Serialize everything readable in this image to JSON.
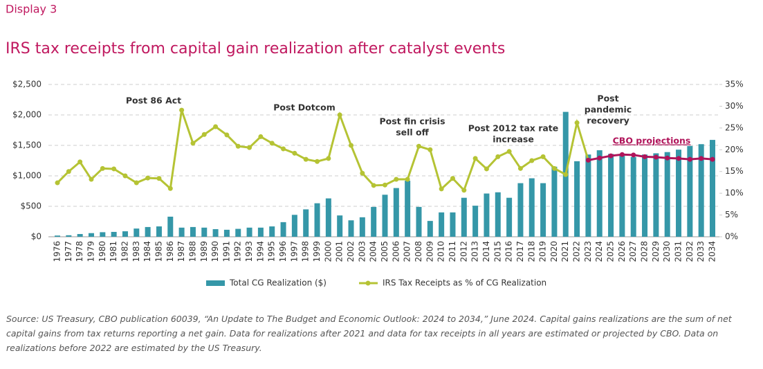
{
  "header": "Display 3",
  "chart_data": {
    "type": "bar-line",
    "title": "IRS tax receipts from capital gain realization after catalyst events",
    "categories": [
      "1976",
      "1977",
      "1978",
      "1979",
      "1980",
      "1981",
      "1982",
      "1983",
      "1984",
      "1985",
      "1986",
      "1987",
      "1988",
      "1989",
      "1990",
      "1991",
      "1992",
      "1993",
      "1994",
      "1995",
      "1996",
      "1997",
      "1998",
      "1999",
      "2000",
      "2001",
      "2002",
      "2003",
      "2004",
      "2005",
      "2006",
      "2007",
      "2008",
      "2009",
      "2010",
      "2011",
      "2012",
      "2013",
      "2014",
      "2015",
      "2016",
      "2017",
      "2018",
      "2019",
      "2020",
      "2021",
      "2022",
      "2023",
      "2024",
      "2025",
      "2026",
      "2027",
      "2028",
      "2029",
      "2030",
      "2031",
      "2032",
      "2033",
      "2034"
    ],
    "series": [
      {
        "name": "Total CG Realization ($)",
        "color": "#3597a8",
        "kind": "bar",
        "values": [
          20,
          25,
          45,
          60,
          75,
          80,
          90,
          135,
          160,
          170,
          330,
          150,
          160,
          150,
          125,
          115,
          130,
          150,
          150,
          170,
          240,
          360,
          450,
          550,
          630,
          350,
          270,
          320,
          490,
          690,
          800,
          920,
          490,
          260,
          400,
          400,
          640,
          510,
          710,
          730,
          640,
          880,
          960,
          880,
          1150,
          2050,
          1240,
          1350,
          1420,
          1360,
          1330,
          1310,
          1350,
          1370,
          1390,
          1430,
          1490,
          1520,
          1590
        ]
      },
      {
        "name": "IRS Tax Receipts as % of CG Realization",
        "color": "#b5c334",
        "kind": "line",
        "axis": "y2",
        "values": [
          12.4,
          15,
          17.2,
          13.2,
          15.7,
          15.6,
          14,
          12.4,
          13.5,
          13.4,
          11.1,
          29.1,
          21.5,
          23.5,
          25.3,
          23.4,
          20.8,
          20.5,
          23,
          21.5,
          20.2,
          19.2,
          17.8,
          17.3,
          18,
          28,
          21,
          14.6,
          11.8,
          11.9,
          13.2,
          13.2,
          20.8,
          20,
          11,
          13.4,
          10.7,
          18,
          15.6,
          18.4,
          19.6,
          15.7,
          17.5,
          18.4,
          15.7,
          14.3,
          26.2,
          17.6,
          null,
          null,
          null,
          null,
          null,
          null,
          null,
          null,
          null,
          null,
          null
        ]
      },
      {
        "color": "#b0145a",
        "kind": "line",
        "axis": "y2",
        "values": [
          null,
          null,
          null,
          null,
          null,
          null,
          null,
          null,
          null,
          null,
          null,
          null,
          null,
          null,
          null,
          null,
          null,
          null,
          null,
          null,
          null,
          null,
          null,
          null,
          null,
          null,
          null,
          null,
          null,
          null,
          null,
          null,
          null,
          null,
          null,
          null,
          null,
          null,
          null,
          null,
          null,
          null,
          null,
          null,
          null,
          null,
          null,
          17.6,
          18.1,
          18.6,
          18.9,
          18.8,
          18.4,
          18.3,
          18.1,
          18,
          17.8,
          18,
          17.8
        ]
      }
    ],
    "ylim": [
      0,
      2500
    ],
    "yticks": [
      {
        "value": 0,
        "label": "$0"
      },
      {
        "value": 500,
        "label": "$500"
      },
      {
        "value": 1000,
        "label": "$1,000"
      },
      {
        "value": 1500,
        "label": "$1,500"
      },
      {
        "value": 2000,
        "label": "$2,000"
      },
      {
        "value": 2500,
        "label": "$2,500"
      }
    ],
    "y2lim": [
      0,
      35
    ],
    "y2ticks": [
      {
        "value": 0,
        "label": "0%"
      },
      {
        "value": 5,
        "label": "5%"
      },
      {
        "value": 10,
        "label": "10%"
      },
      {
        "value": 15,
        "label": "15%"
      },
      {
        "value": 20,
        "label": "20%"
      },
      {
        "value": 25,
        "label": "25%"
      },
      {
        "value": 30,
        "label": "30%"
      },
      {
        "value": 35,
        "label": "35%"
      }
    ],
    "grid": true,
    "legend": "bottom",
    "annotations": [
      {
        "lines": [
          "Post 86 Act"
        ]
      },
      {
        "lines": [
          "Post Dotcom"
        ]
      },
      {
        "lines": [
          "Post fin crisis",
          "sell off"
        ]
      },
      {
        "lines": [
          "Post 2012 tax rate",
          "increase"
        ]
      },
      {
        "lines": [
          "Post",
          "pandemic",
          "recovery"
        ]
      },
      {
        "lines": [
          "CBO projections"
        ]
      }
    ]
  },
  "source": "Source: US Treasury, CBO publication 60039, “An Update to The Budget and Economic Outlook: 2024 to 2034,” June 2024. Capital gains realizations are the sum of net capital gains from tax returns reporting a net gain. Data for realizations after 2021 and data for tax receipts in all years are estimated or projected by CBO. Data on realizations before 2022 are estimated by the US Treasury."
}
